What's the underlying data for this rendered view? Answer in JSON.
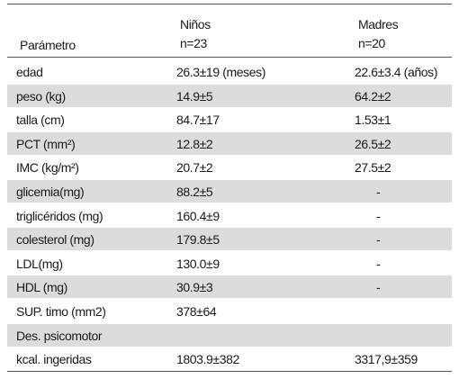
{
  "table": {
    "header": {
      "parameter": "Parámetro",
      "groups": [
        {
          "name": "Niños",
          "n": "n=23"
        },
        {
          "name": "Madres",
          "n": "n=20"
        }
      ]
    },
    "rows": [
      [
        "edad",
        "26.3±19 (meses)",
        "22.6±3.4 (años)"
      ],
      [
        "peso  (kg)",
        "14.9±5",
        "64.2±2"
      ],
      [
        "talla (cm)",
        "84.7±17",
        "1.53±1"
      ],
      [
        "PCT  (mm²)",
        "12.8±2",
        "26.5±2"
      ],
      [
        "IMC  (kg/m²)",
        "20.7±2",
        "27.5±2"
      ],
      [
        "glicemia(mg)",
        "88.2±5",
        "-"
      ],
      [
        "triglicéridos (mg)",
        "160.4±9",
        "-"
      ],
      [
        "colesterol (mg)",
        "179.8±5",
        "-"
      ],
      [
        "LDL(mg)",
        "130.0±9",
        "-"
      ],
      [
        "HDL (mg)",
        "30.9±3",
        "-"
      ],
      [
        "SUP. timo (mm2)",
        "378±64",
        null
      ],
      [
        "Des. psicomotor",
        null,
        null
      ],
      [
        "kcal. ingeridas",
        "1803.9±382",
        "3317,9±359"
      ]
    ]
  }
}
